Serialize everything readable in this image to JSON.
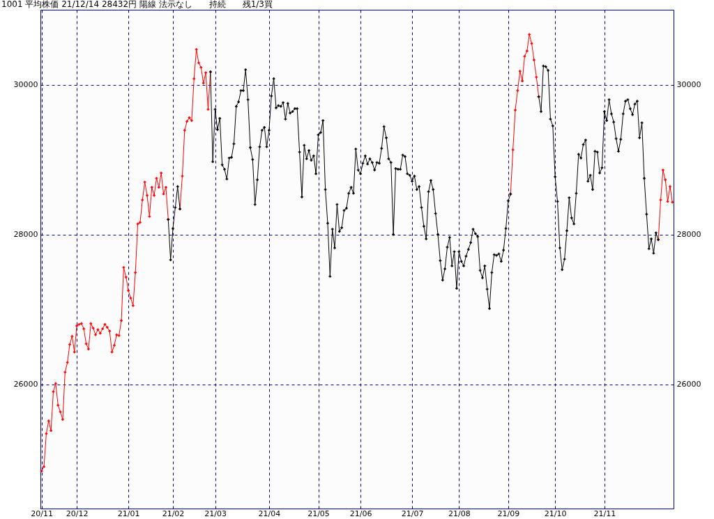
{
  "chart_data": {
    "type": "line",
    "title": "1001 平均株価 21/12/14 28432円 陽線 法示なし　　持続　　残1/3買",
    "ylim": [
      24340,
      31000
    ],
    "y2lim": [
      24340,
      31000
    ],
    "categories": [
      "20/11",
      null,
      null,
      null,
      null,
      null,
      null,
      null,
      null,
      null,
      null,
      null,
      null,
      null,
      null,
      "20/12",
      null,
      null,
      null,
      null,
      null,
      null,
      null,
      null,
      null,
      null,
      null,
      null,
      null,
      null,
      null,
      null,
      null,
      null,
      null,
      null,
      null,
      "21/01",
      null,
      null,
      null,
      null,
      null,
      null,
      null,
      null,
      null,
      null,
      null,
      null,
      null,
      null,
      null,
      null,
      null,
      null,
      "21/02",
      null,
      null,
      null,
      null,
      null,
      null,
      null,
      null,
      null,
      null,
      null,
      null,
      null,
      null,
      null,
      null,
      null,
      "21/03",
      null,
      null,
      null,
      null,
      null,
      null,
      null,
      null,
      null,
      null,
      null,
      null,
      null,
      null,
      null,
      null,
      null,
      null,
      null,
      null,
      null,
      null,
      "21/04",
      null,
      null,
      null,
      null,
      null,
      null,
      null,
      null,
      null,
      null,
      null,
      null,
      null,
      null,
      null,
      null,
      null,
      null,
      null,
      null,
      "21/05",
      null,
      null,
      null,
      null,
      null,
      null,
      null,
      null,
      null,
      null,
      null,
      null,
      null,
      null,
      null,
      null,
      null,
      "21/06",
      null,
      null,
      null,
      null,
      null,
      null,
      null,
      null,
      null,
      null,
      null,
      null,
      null,
      null,
      null,
      null,
      null,
      null,
      null,
      null,
      null,
      "21/07",
      null,
      null,
      null,
      null,
      null,
      null,
      null,
      null,
      null,
      null,
      null,
      null,
      null,
      null,
      null,
      null,
      null,
      null,
      null,
      "21/08",
      null,
      null,
      null,
      null,
      null,
      null,
      null,
      null,
      null,
      null,
      null,
      null,
      null,
      null,
      null,
      null,
      null,
      null,
      null,
      null,
      "21/09",
      null,
      null,
      null,
      null,
      null,
      null,
      null,
      null,
      null,
      null,
      null,
      null,
      null,
      null,
      null,
      null,
      null,
      null,
      null,
      "21/10",
      null,
      null,
      null,
      null,
      null,
      null,
      null,
      null,
      null,
      null,
      null,
      null,
      null,
      null,
      null,
      null,
      null,
      null,
      null,
      null,
      "21/11",
      null,
      null,
      null,
      null,
      null,
      null,
      null,
      null,
      null,
      null,
      null,
      null,
      null,
      null,
      null,
      null,
      null,
      null,
      null,
      null,
      null,
      null,
      null,
      null,
      null,
      null,
      null,
      null,
      null
    ],
    "yticks": [
      26000,
      28000,
      30000
    ],
    "y2ticks": [
      26000,
      28000,
      30000
    ],
    "grid": true,
    "marker": "cross",
    "line_style": "solid",
    "series": [
      {
        "color": "#ff0000",
        "values": [
          24840,
          24900,
          25340,
          25510,
          25380,
          25900,
          26010,
          25720,
          25630,
          25530,
          26160,
          26290,
          26530,
          26640,
          26430,
          26780,
          26800,
          26810,
          26740,
          26540,
          26470,
          26810,
          26750,
          26660,
          26730,
          26680,
          26740,
          26800,
          26760,
          26710,
          26430,
          26520,
          26660,
          26650,
          26850,
          27560,
          27430,
          27250,
          27150,
          27050,
          27490,
          28140,
          28160,
          28460,
          28700,
          28520,
          28240,
          28630,
          28520,
          28750,
          28630,
          28820,
          28540,
          28630,
          28200,
          null,
          null,
          null,
          null,
          28340,
          28780,
          29390,
          29510,
          29560,
          29520,
          30080,
          30470,
          30290,
          30230,
          30020,
          30160,
          29670,
          30170,
          null,
          null,
          null,
          null,
          null,
          null,
          null,
          null,
          null,
          null,
          null,
          null,
          null,
          null,
          null,
          null,
          null,
          null,
          null,
          null,
          null,
          null,
          null,
          null,
          null,
          null,
          null,
          null,
          null,
          null,
          null,
          null,
          null,
          null,
          null,
          null,
          null,
          null,
          null,
          null,
          null,
          null,
          null,
          null,
          null,
          null,
          null,
          null,
          null,
          null,
          null,
          null,
          null,
          null,
          null,
          null,
          null,
          null,
          null,
          null,
          null,
          null,
          null,
          null,
          null,
          null,
          null,
          null,
          null,
          null,
          null,
          null,
          null,
          null,
          null,
          null,
          null,
          null,
          null,
          null,
          null,
          null,
          null,
          null,
          null,
          null,
          null,
          null,
          null,
          null,
          null,
          null,
          null,
          null,
          null,
          null,
          null,
          null,
          null,
          null,
          null,
          null,
          null,
          null,
          null,
          null,
          null,
          null,
          null,
          null,
          null,
          null,
          null,
          null,
          null,
          null,
          null,
          null,
          null,
          null,
          null,
          null,
          null,
          null,
          null,
          null,
          null,
          28540,
          29130,
          29660,
          29920,
          30180,
          30050,
          30380,
          30450,
          30670,
          30550,
          30330,
          30100,
          29840,
          null,
          null,
          null,
          null,
          null,
          null,
          null,
          null,
          null,
          null,
          null,
          null,
          null,
          null,
          null,
          null,
          null,
          null,
          null,
          null,
          null,
          null,
          null,
          null,
          null,
          null,
          null,
          null,
          null,
          null,
          null,
          null,
          null,
          null,
          null,
          null,
          null,
          null,
          null,
          null,
          null,
          null,
          null,
          null,
          null,
          null,
          null,
          null,
          null,
          null,
          27930,
          28460,
          28860,
          28730,
          28440,
          28640,
          28430
        ]
      },
      {
        "color": "#000000",
        "values": [
          null,
          null,
          null,
          null,
          null,
          null,
          null,
          null,
          null,
          null,
          null,
          null,
          null,
          null,
          null,
          null,
          null,
          null,
          null,
          null,
          null,
          null,
          null,
          null,
          null,
          null,
          null,
          null,
          null,
          null,
          null,
          null,
          null,
          null,
          null,
          null,
          null,
          null,
          null,
          null,
          null,
          null,
          null,
          null,
          null,
          null,
          null,
          null,
          null,
          null,
          null,
          null,
          null,
          null,
          28200,
          27660,
          28080,
          28360,
          28640,
          28340,
          null,
          null,
          null,
          null,
          null,
          null,
          null,
          null,
          null,
          null,
          null,
          null,
          30170,
          28970,
          29670,
          29400,
          29550,
          28930,
          28870,
          28740,
          29020,
          29030,
          29210,
          29710,
          29770,
          29920,
          29920,
          30200,
          29800,
          29160,
          29000,
          28400,
          28730,
          29170,
          29390,
          29430,
          29170,
          29390,
          29850,
          30080,
          29690,
          29720,
          29710,
          29760,
          29540,
          29750,
          29620,
          29640,
          29680,
          29680,
          29100,
          28500,
          29190,
          29010,
          29120,
          28990,
          29050,
          28810,
          29330,
          29360,
          29520,
          28600,
          28150,
          27440,
          28070,
          27820,
          28400,
          28040,
          28090,
          28320,
          28350,
          28550,
          28630,
          28550,
          29140,
          28860,
          28810,
          28950,
          29050,
          28940,
          29010,
          28960,
          28860,
          28960,
          28950,
          29150,
          29440,
          29290,
          29010,
          28960,
          28000,
          28880,
          28870,
          28870,
          29060,
          29040,
          28810,
          28790,
          28710,
          28780,
          28600,
          28640,
          28360,
          28110,
          27940,
          28570,
          28720,
          28600,
          28280,
          28000,
          27650,
          27390,
          27540,
          27830,
          27960,
          27580,
          27770,
          27280,
          27770,
          27640,
          27580,
          27710,
          27800,
          27890,
          28070,
          28010,
          27970,
          27520,
          27420,
          27580,
          27270,
          27010,
          27490,
          27730,
          27720,
          27740,
          27640,
          27790,
          28080,
          28450,
          28540,
          null,
          null,
          null,
          null,
          null,
          null,
          null,
          null,
          null,
          null,
          null,
          29840,
          29640,
          30250,
          30240,
          30190,
          29540,
          29450,
          28770,
          28440,
          27820,
          27530,
          27670,
          28050,
          28490,
          28220,
          28140,
          28550,
          29070,
          29020,
          29200,
          29260,
          28710,
          28790,
          28600,
          29110,
          29100,
          28820,
          28890,
          29640,
          29520,
          29800,
          29610,
          29500,
          29280,
          29110,
          29270,
          29610,
          29780,
          29800,
          29680,
          29600,
          29740,
          29780,
          29290,
          29490,
          28750,
          28270,
          27810,
          27940,
          27750,
          28020,
          27930,
          null,
          null,
          null,
          null,
          null,
          null
        ]
      }
    ]
  }
}
